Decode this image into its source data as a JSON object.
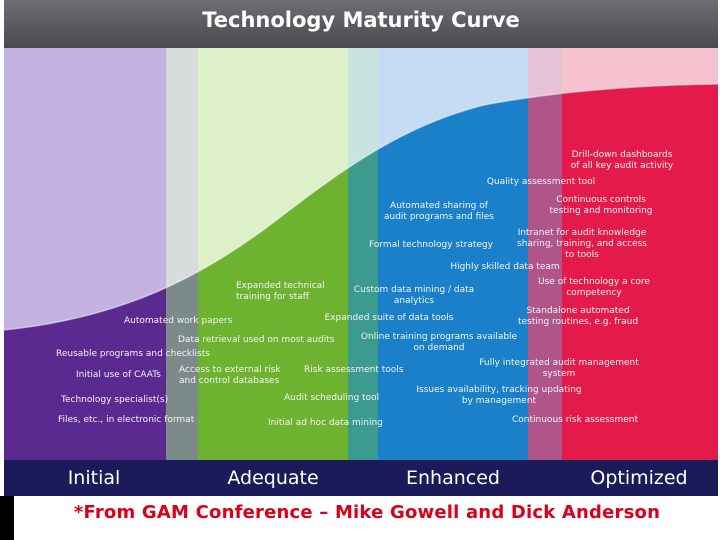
{
  "title": "Technology Maturity Curve",
  "stages": [
    {
      "name": "Initial",
      "color": "#5a2a91"
    },
    {
      "name": "Adequate",
      "color": "#73b632"
    },
    {
      "name": "Enhanced",
      "color": "#1a80c9"
    },
    {
      "name": "Optimized",
      "color": "#e51b4a"
    }
  ],
  "items": [
    {
      "key": "drill_down",
      "text": "Drill-down dashboards\nof all key audit activity"
    },
    {
      "key": "quality_tool",
      "text": "Quality assessment tool"
    },
    {
      "key": "auto_sharing",
      "text": "Automated sharing of\naudit programs and files"
    },
    {
      "key": "continuous_controls",
      "text": "Continuous controls\ntesting and monitoring"
    },
    {
      "key": "intranet",
      "text": "Intranet for audit knowledge\nsharing, training, and access\nto tools"
    },
    {
      "key": "formal_strategy",
      "text": "Formal technology strategy"
    },
    {
      "key": "highly_skilled",
      "text": "Highly skilled data team"
    },
    {
      "key": "expanded_training",
      "text": "Expanded technical\ntraining for staff"
    },
    {
      "key": "custom_mining",
      "text": "Custom data mining / data\nanalytics"
    },
    {
      "key": "core_competency",
      "text": "Use of technology a core\ncompetency"
    },
    {
      "key": "standalone",
      "text": "Standalone automated\ntesting routines, e.g. fraud"
    },
    {
      "key": "expanded_suite",
      "text": "Expanded suite of data tools"
    },
    {
      "key": "work_papers",
      "text": "Automated work papers"
    },
    {
      "key": "online_training",
      "text": "Online training programs available\non demand"
    },
    {
      "key": "data_retrieval",
      "text": "Data retrieval used on most audits"
    },
    {
      "key": "reusable",
      "text": "Reusable programs and checklists"
    },
    {
      "key": "integrated_mgmt",
      "text": "Fully integrated audit management\nsystem"
    },
    {
      "key": "caats",
      "text": "Initial use of CAATs"
    },
    {
      "key": "external_risk",
      "text": "Access to external risk\nand control databases"
    },
    {
      "key": "risk_tools",
      "text": "Risk assessment tools"
    },
    {
      "key": "issues",
      "text": "Issues availability, tracking updating\nby management"
    },
    {
      "key": "specialists",
      "text": "Technology specialist(s)"
    },
    {
      "key": "scheduling",
      "text": "Audit scheduling tool"
    },
    {
      "key": "files",
      "text": "Files, etc., in electronic format"
    },
    {
      "key": "adhoc",
      "text": "Initial ad hoc data mining"
    },
    {
      "key": "continuous_risk",
      "text": "Continuous risk assessment"
    }
  ],
  "credit": "*From GAM Conference – Mike Gowell and Dick Anderson"
}
